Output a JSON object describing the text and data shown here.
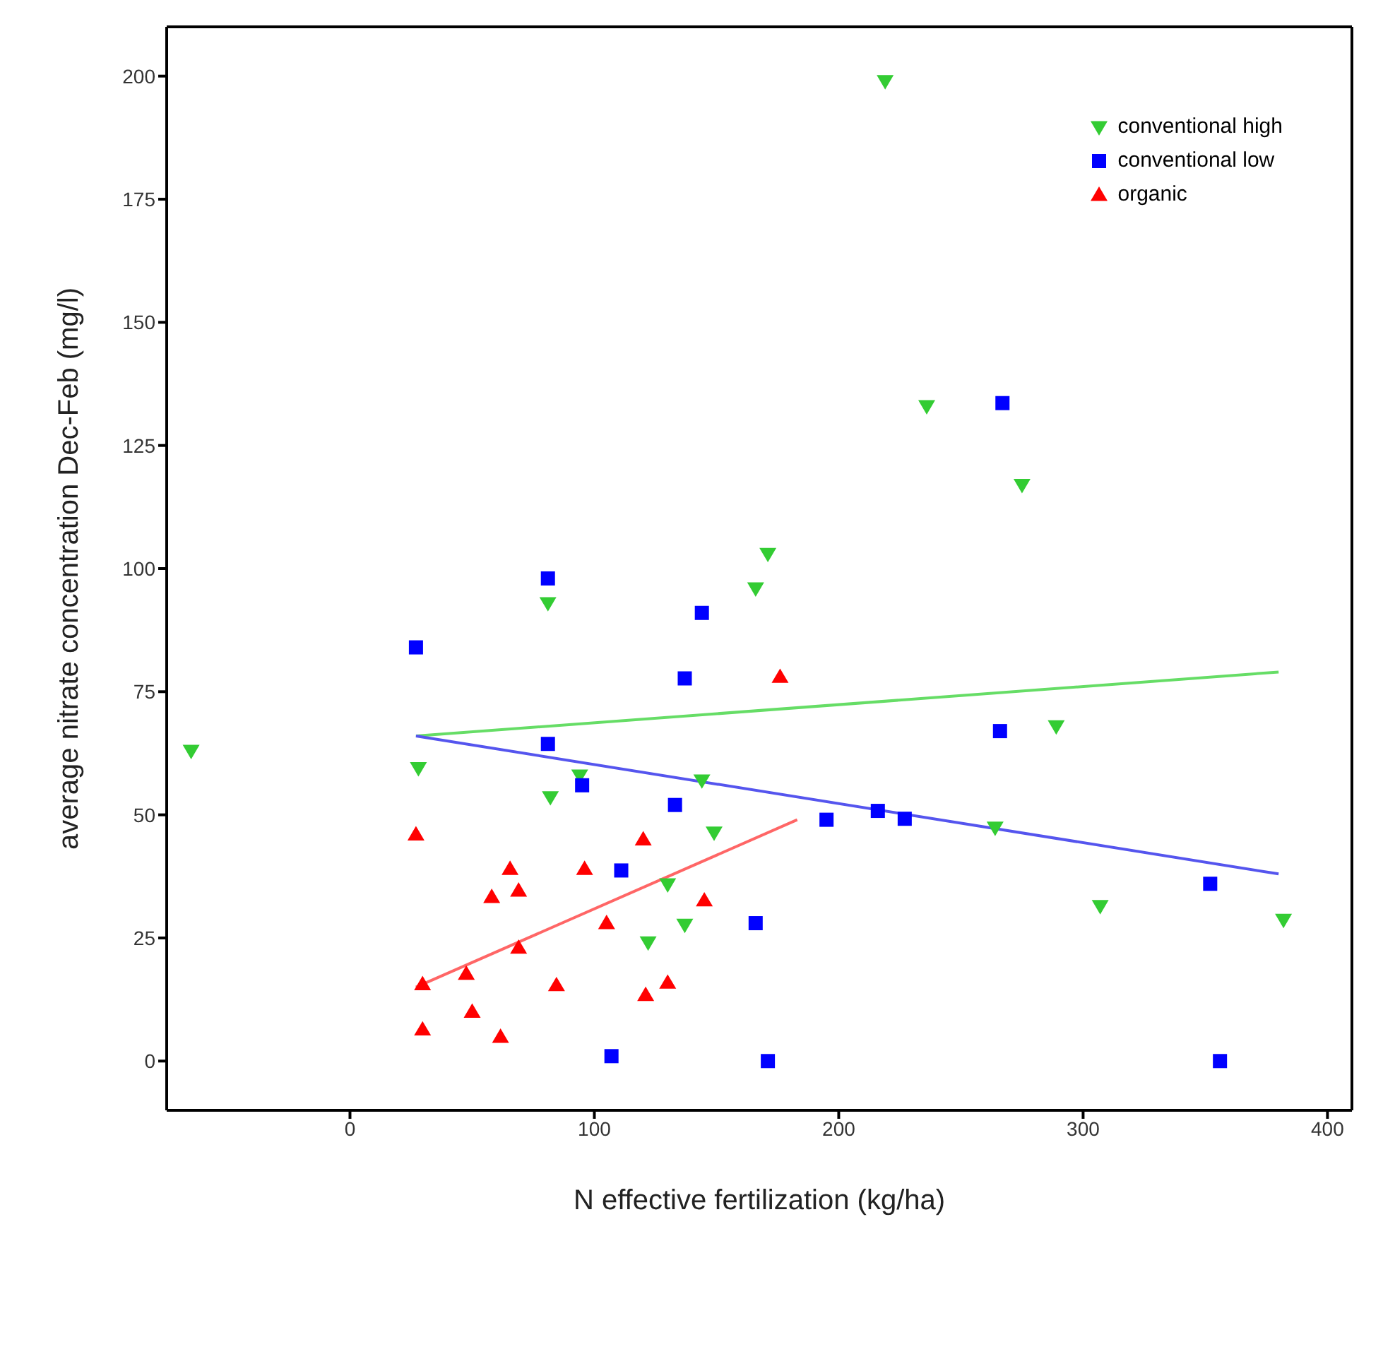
{
  "chart_data": {
    "type": "scatter",
    "xlabel": "N effective fertilization (kg/ha)",
    "ylabel": "average nitrate concentration Dec-Feb (mg/l)",
    "xlim": [
      -75,
      410
    ],
    "ylim": [
      -10,
      210
    ],
    "xticks": [
      0,
      100,
      200,
      300,
      400
    ],
    "yticks": [
      0,
      25,
      50,
      75,
      100,
      125,
      150,
      175,
      200
    ],
    "legend": "top right",
    "series": [
      {
        "name": "conventional high",
        "color": "#33cc33",
        "marker": "triangle-down",
        "x": [
          -65,
          28,
          81,
          82,
          94,
          144,
          149,
          130,
          137,
          122,
          166,
          171,
          219,
          236,
          275,
          289,
          264,
          307,
          382
        ],
        "values": [
          63,
          59.5,
          93,
          53.6,
          58,
          57,
          46.4,
          35.9,
          27.7,
          24.1,
          96,
          103,
          199,
          133,
          117,
          68,
          47.4,
          31.5,
          28.7
        ]
      },
      {
        "name": "conventional low",
        "color": "#0000ff",
        "marker": "square",
        "x": [
          27,
          81,
          144,
          137,
          81,
          95,
          133,
          111,
          166,
          107,
          171,
          195,
          216,
          227,
          267,
          266,
          352,
          356
        ],
        "values": [
          84,
          98,
          91,
          77.7,
          64.4,
          56,
          52,
          38.7,
          28,
          1,
          0,
          49,
          50.8,
          49.2,
          133.6,
          67,
          36,
          0
        ]
      },
      {
        "name": "organic",
        "color": "#ff0000",
        "marker": "triangle",
        "x": [
          27,
          65.5,
          69,
          58,
          96,
          120,
          145,
          105,
          69,
          29.7,
          47.6,
          84.5,
          130,
          121,
          50,
          29.7,
          61.6,
          176
        ],
        "values": [
          46,
          39,
          34.6,
          33.3,
          39,
          45,
          32.6,
          28,
          23,
          15.6,
          17.7,
          15.4,
          15.9,
          13.4,
          10,
          6.4,
          4.9,
          78
        ]
      },
      {
        "type": "line",
        "color": "#66dd66",
        "marker": "none",
        "x": [
          27,
          380
        ],
        "values": [
          66,
          79
        ]
      },
      {
        "type": "line",
        "color": "#5555ee",
        "marker": "none",
        "x": [
          27,
          380
        ],
        "values": [
          66,
          38
        ]
      },
      {
        "type": "line",
        "color": "#ff6666",
        "marker": "none",
        "x": [
          27,
          183
        ],
        "values": [
          15,
          49
        ]
      }
    ]
  }
}
